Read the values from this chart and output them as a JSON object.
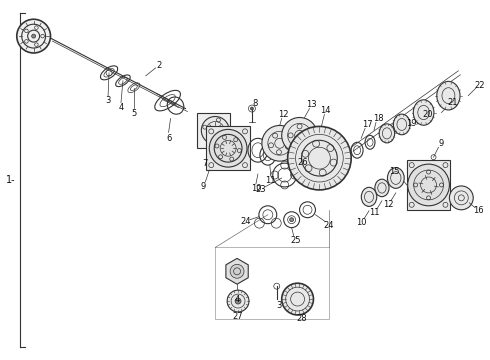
{
  "bg_color": "#ffffff",
  "fig_width": 4.9,
  "fig_height": 3.6,
  "dpi": 100,
  "lc": "#333333",
  "tc": "#111111",
  "fs": 6.0,
  "lw_thin": 0.5,
  "lw_med": 0.8,
  "lw_thick": 1.2
}
